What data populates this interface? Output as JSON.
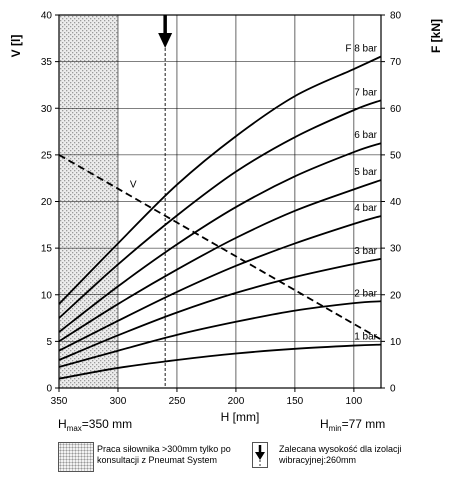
{
  "chart_data": {
    "type": "line",
    "x_label": "H [mm]",
    "y_left_label": "V [l]",
    "y_right_label": "F [kN]",
    "xlim": [
      350,
      77
    ],
    "y_left_lim": [
      0,
      40
    ],
    "y_right_lim": [
      0,
      80
    ],
    "x_ticks": [
      350,
      300,
      250,
      200,
      150,
      100
    ],
    "y_left_ticks": [
      0,
      5,
      10,
      15,
      20,
      25,
      30,
      35,
      40
    ],
    "y_right_ticks": [
      0,
      10,
      20,
      30,
      40,
      50,
      60,
      70,
      80
    ],
    "x_extremes": {
      "max_label": "H",
      "max_sub": "max",
      "max_value": "=350 mm",
      "min_label": "H",
      "min_sub": "min",
      "min_value": "=77 mm"
    },
    "hatched_region": {
      "x_from": 350,
      "x_to": 300
    },
    "recommended_height": 260,
    "series": [
      {
        "name": "1 bar",
        "axis": "F",
        "x": [
          350,
          300,
          250,
          200,
          150,
          100,
          77
        ],
        "y": [
          2.0,
          4.3,
          6.0,
          7.4,
          8.4,
          9.1,
          9.3
        ]
      },
      {
        "name": "2 bar",
        "axis": "F",
        "x": [
          350,
          300,
          250,
          200,
          150,
          100,
          77
        ],
        "y": [
          4.5,
          8.0,
          11.4,
          14.2,
          16.6,
          18.2,
          18.6
        ]
      },
      {
        "name": "3 bar",
        "axis": "F",
        "x": [
          350,
          300,
          250,
          200,
          150,
          100,
          77
        ],
        "y": [
          6.0,
          11.3,
          16.2,
          20.4,
          23.8,
          26.6,
          27.7
        ]
      },
      {
        "name": "4 bar",
        "axis": "F",
        "x": [
          350,
          300,
          250,
          200,
          150,
          100,
          77
        ],
        "y": [
          8.0,
          14.4,
          20.6,
          26.2,
          31.0,
          35.2,
          36.9
        ]
      },
      {
        "name": "5 bar",
        "axis": "F",
        "x": [
          350,
          300,
          250,
          200,
          150,
          100,
          77
        ],
        "y": [
          10.0,
          18.0,
          25.4,
          32.2,
          38.0,
          42.6,
          44.6
        ]
      },
      {
        "name": "6 bar",
        "axis": "F",
        "x": [
          350,
          300,
          250,
          200,
          150,
          100,
          77
        ],
        "y": [
          12.0,
          21.8,
          30.8,
          38.8,
          45.4,
          50.6,
          52.5
        ]
      },
      {
        "name": "7 bar",
        "axis": "F",
        "x": [
          350,
          300,
          250,
          200,
          150,
          100,
          77
        ],
        "y": [
          15.0,
          26.5,
          37.0,
          46.4,
          53.8,
          59.6,
          61.7
        ]
      },
      {
        "name": "8 bar",
        "axis": "F",
        "x": [
          350,
          300,
          250,
          200,
          150,
          100,
          77
        ],
        "y": [
          18.0,
          31.0,
          43.6,
          54.0,
          62.6,
          68.4,
          71.1
        ]
      },
      {
        "name": "V",
        "axis": "V",
        "dashed": true,
        "x": [
          350,
          77
        ],
        "y": [
          25.0,
          5.2
        ]
      }
    ],
    "series_label_prefix_8bar": "F",
    "grid": true
  },
  "legend": {
    "hatched_text": "Praca siłownika >300mm tylko po konsultacji z Pneumat System",
    "arrow_text": "Zalecana wysokość dla izolacji wibracyjnej:260mm"
  }
}
